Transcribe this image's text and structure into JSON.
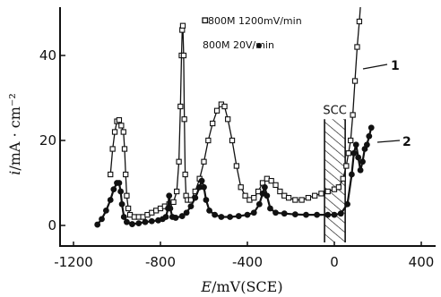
{
  "chart_data": {
    "type": "line",
    "xlabel_italic": "E",
    "xlabel_rest": "/mV(SCE)",
    "ylabel_italic": "i",
    "ylabel_rest": "/mA · cm⁻²",
    "xlim": [
      -1200,
      400
    ],
    "ylim": [
      0,
      50
    ],
    "xticks": [
      -1200,
      -800,
      -400,
      0,
      400
    ],
    "xtick_labels": [
      "-1200",
      "-800",
      "-400",
      "0",
      "400"
    ],
    "yticks": [
      0,
      20,
      40
    ],
    "ytick_labels": [
      "0",
      "20",
      "40"
    ],
    "grid": false,
    "legend_position": "top",
    "series": [
      {
        "name": "800M   1200mV/min",
        "marker": "open-square",
        "label": "1",
        "points": [
          [
            -1030,
            12
          ],
          [
            -1020,
            18
          ],
          [
            -1010,
            22
          ],
          [
            -1000,
            24.5
          ],
          [
            -990,
            24.8
          ],
          [
            -980,
            23.5
          ],
          [
            -970,
            22
          ],
          [
            -965,
            18
          ],
          [
            -960,
            12
          ],
          [
            -955,
            7
          ],
          [
            -948,
            4
          ],
          [
            -940,
            2.5
          ],
          [
            -920,
            2
          ],
          [
            -900,
            2
          ],
          [
            -880,
            2
          ],
          [
            -860,
            2.5
          ],
          [
            -840,
            3
          ],
          [
            -820,
            3.5
          ],
          [
            -800,
            4
          ],
          [
            -780,
            4.5
          ],
          [
            -760,
            5
          ],
          [
            -740,
            5.5
          ],
          [
            -725,
            8
          ],
          [
            -715,
            15
          ],
          [
            -708,
            28
          ],
          [
            -703,
            40
          ],
          [
            -700,
            46
          ],
          [
            -697,
            47
          ],
          [
            -693,
            40
          ],
          [
            -690,
            25
          ],
          [
            -686,
            12
          ],
          [
            -682,
            7
          ],
          [
            -675,
            6
          ],
          [
            -660,
            6
          ],
          [
            -640,
            8
          ],
          [
            -620,
            11
          ],
          [
            -600,
            15
          ],
          [
            -580,
            20
          ],
          [
            -560,
            24
          ],
          [
            -540,
            27
          ],
          [
            -520,
            28.5
          ],
          [
            -505,
            28
          ],
          [
            -490,
            25
          ],
          [
            -470,
            20
          ],
          [
            -450,
            14
          ],
          [
            -430,
            9
          ],
          [
            -410,
            7
          ],
          [
            -390,
            6
          ],
          [
            -370,
            6.5
          ],
          [
            -350,
            8
          ],
          [
            -330,
            10
          ],
          [
            -310,
            11
          ],
          [
            -290,
            10.5
          ],
          [
            -270,
            9.5
          ],
          [
            -250,
            8
          ],
          [
            -230,
            7
          ],
          [
            -210,
            6.5
          ],
          [
            -180,
            6
          ],
          [
            -150,
            6
          ],
          [
            -120,
            6.5
          ],
          [
            -90,
            7
          ],
          [
            -60,
            7.5
          ],
          [
            -30,
            8
          ],
          [
            0,
            8.5
          ],
          [
            20,
            9
          ],
          [
            40,
            11
          ],
          [
            55,
            14
          ],
          [
            65,
            17
          ],
          [
            75,
            20
          ],
          [
            85,
            26
          ],
          [
            95,
            34
          ],
          [
            105,
            42
          ],
          [
            115,
            48
          ],
          [
            125,
            55
          ]
        ]
      },
      {
        "name": "800M   20V/min",
        "marker": "filled-circle",
        "label": "2",
        "points": [
          [
            -1090,
            0.2
          ],
          [
            -1070,
            1.5
          ],
          [
            -1050,
            3.5
          ],
          [
            -1030,
            6
          ],
          [
            -1015,
            8.5
          ],
          [
            -1000,
            10
          ],
          [
            -990,
            10
          ],
          [
            -983,
            8
          ],
          [
            -977,
            5
          ],
          [
            -968,
            2
          ],
          [
            -955,
            0.8
          ],
          [
            -930,
            0.3
          ],
          [
            -900,
            0.5
          ],
          [
            -870,
            0.8
          ],
          [
            -840,
            1
          ],
          [
            -810,
            1.2
          ],
          [
            -790,
            1.5
          ],
          [
            -775,
            2
          ],
          [
            -765,
            4
          ],
          [
            -760,
            7
          ],
          [
            -755,
            4
          ],
          [
            -745,
            2
          ],
          [
            -730,
            1.8
          ],
          [
            -700,
            2.2
          ],
          [
            -680,
            3
          ],
          [
            -660,
            4.5
          ],
          [
            -640,
            6.5
          ],
          [
            -620,
            9
          ],
          [
            -610,
            10.5
          ],
          [
            -600,
            9
          ],
          [
            -590,
            6
          ],
          [
            -575,
            3.5
          ],
          [
            -550,
            2.5
          ],
          [
            -520,
            2
          ],
          [
            -480,
            2
          ],
          [
            -440,
            2.2
          ],
          [
            -400,
            2.5
          ],
          [
            -370,
            3
          ],
          [
            -345,
            5
          ],
          [
            -330,
            7.5
          ],
          [
            -320,
            9
          ],
          [
            -310,
            7
          ],
          [
            -295,
            4
          ],
          [
            -270,
            3
          ],
          [
            -230,
            2.8
          ],
          [
            -180,
            2.6
          ],
          [
            -130,
            2.5
          ],
          [
            -80,
            2.5
          ],
          [
            -30,
            2.5
          ],
          [
            0,
            2.5
          ],
          [
            30,
            2.8
          ],
          [
            60,
            5
          ],
          [
            80,
            12
          ],
          [
            90,
            17
          ],
          [
            100,
            19
          ],
          [
            110,
            16
          ],
          [
            120,
            13
          ],
          [
            130,
            15
          ],
          [
            140,
            18
          ],
          [
            150,
            19
          ],
          [
            160,
            21
          ],
          [
            170,
            23
          ]
        ]
      }
    ],
    "annotations": {
      "scc_label": "SCC",
      "scc_range": [
        -45,
        50
      ],
      "scc_top": 25,
      "scc_bottom": -4
    }
  }
}
